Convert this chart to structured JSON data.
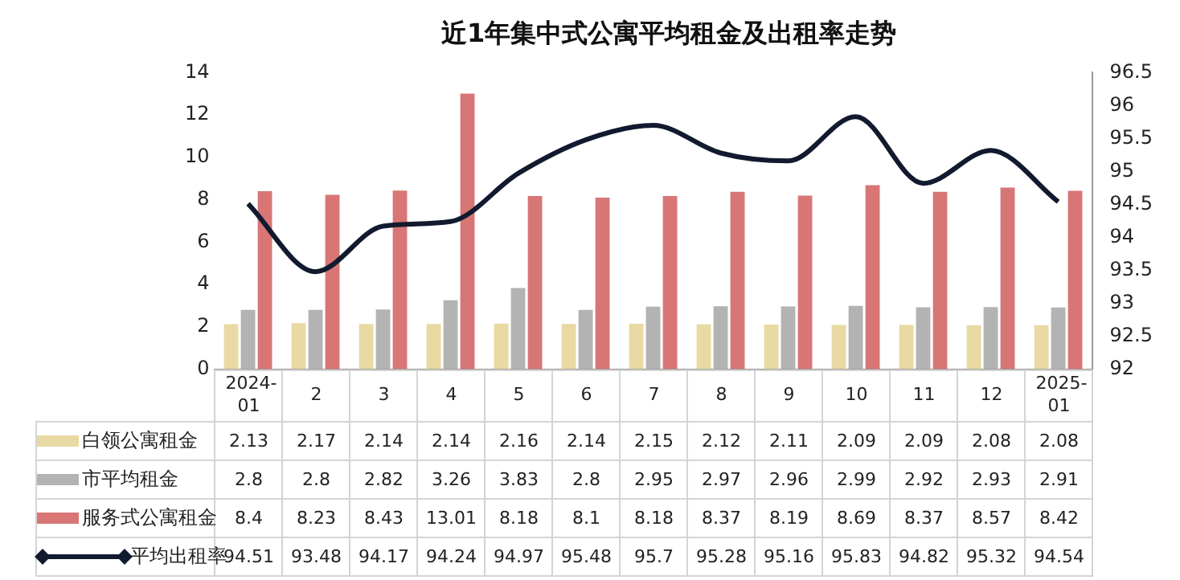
{
  "chart_data": {
    "type": "bar",
    "title": "近1年集中式公寓平均租金及出租率走势",
    "categories": [
      "2024-01",
      "2",
      "3",
      "4",
      "5",
      "6",
      "7",
      "8",
      "9",
      "10",
      "11",
      "12",
      "2025-01"
    ],
    "series": [
      {
        "name": "白领公寓租金",
        "color": "#e9d9a2",
        "values": [
          2.13,
          2.17,
          2.14,
          2.14,
          2.16,
          2.14,
          2.15,
          2.12,
          2.11,
          2.09,
          2.09,
          2.08,
          2.08
        ]
      },
      {
        "name": "市平均租金",
        "color": "#b3b3b3",
        "values": [
          2.8,
          2.8,
          2.82,
          3.26,
          3.83,
          2.8,
          2.95,
          2.97,
          2.96,
          2.99,
          2.92,
          2.93,
          2.91
        ]
      },
      {
        "name": "服务式公寓租金",
        "color": "#d87676",
        "values": [
          8.4,
          8.23,
          8.43,
          13.01,
          8.18,
          8.1,
          8.18,
          8.37,
          8.19,
          8.69,
          8.37,
          8.57,
          8.42
        ]
      },
      {
        "name": "平均出租率",
        "type": "line",
        "axis": "y2",
        "color": "#111a2e",
        "values": [
          94.51,
          93.48,
          94.17,
          94.24,
          94.97,
          95.48,
          95.7,
          95.28,
          95.16,
          95.83,
          94.82,
          95.32,
          94.54
        ]
      }
    ],
    "ylim": [
      0,
      14
    ],
    "yticks": [
      0,
      2,
      4,
      6,
      8,
      10,
      12,
      14
    ],
    "y2lim": [
      92,
      96.5
    ],
    "y2ticks": [
      92,
      92.5,
      93,
      93.5,
      94,
      94.5,
      95,
      95.5,
      96,
      96.5
    ],
    "grid": false,
    "legend": "bottom",
    "data_labels": true
  }
}
